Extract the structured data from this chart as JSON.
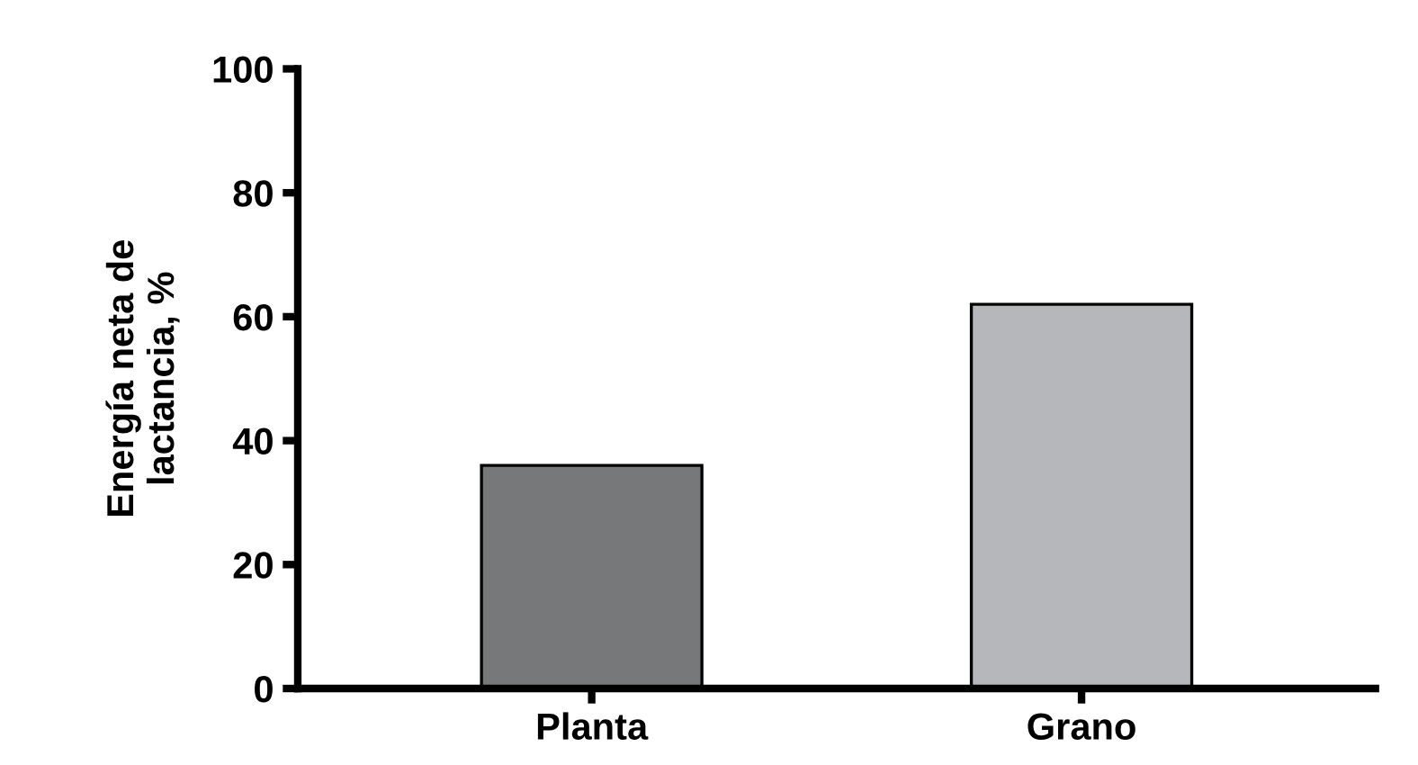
{
  "chart_data": {
    "type": "bar",
    "ylabel": "Energía neta de\nlactancia, %",
    "categories": [
      "Planta",
      "Grano"
    ],
    "values": [
      36,
      62
    ],
    "colors": [
      "#77787a",
      "#b5b7ba"
    ],
    "ylim": [
      0,
      100
    ],
    "yticks": [
      0,
      20,
      40,
      60,
      80,
      100
    ],
    "grid": false
  }
}
